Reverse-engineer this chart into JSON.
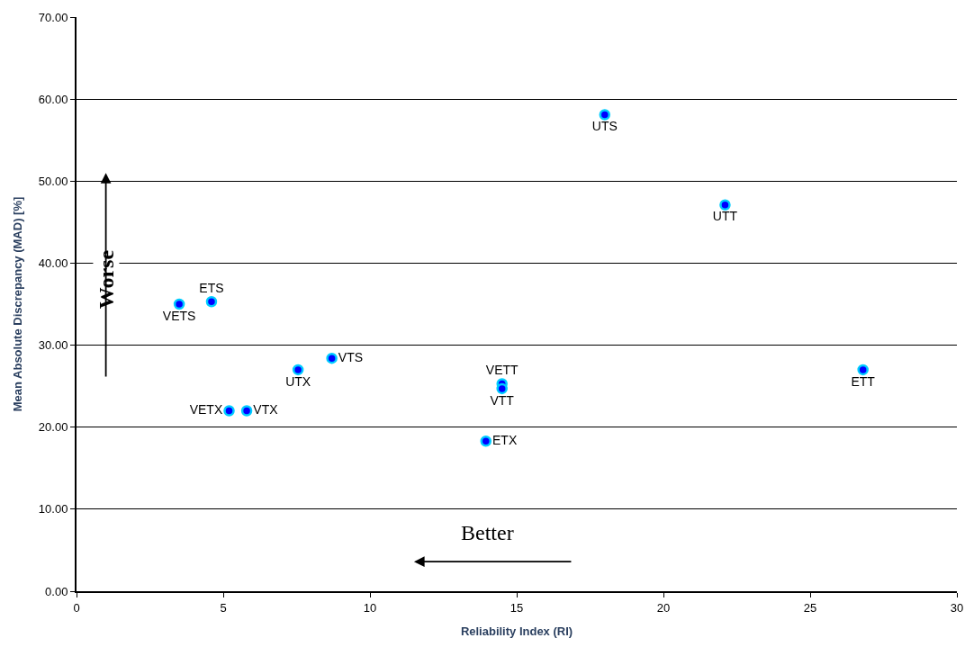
{
  "chart_data": {
    "type": "scatter",
    "xlabel": "Reliability Index (RI)",
    "ylabel": "Mean Absolute Discrepancy (MAD) [%]",
    "xlim": [
      0,
      30
    ],
    "xticks": [
      0,
      5,
      10,
      15,
      20,
      25,
      30
    ],
    "ylim": [
      0,
      70
    ],
    "yticks": [
      {
        "value": 0,
        "label": "0.00"
      },
      {
        "value": 10,
        "label": "10.00"
      },
      {
        "value": 20,
        "label": "20.00"
      },
      {
        "value": 30,
        "label": "30.00"
      },
      {
        "value": 40,
        "label": "40.00"
      },
      {
        "value": 50,
        "label": "50.00"
      },
      {
        "value": 60,
        "label": "60.00"
      },
      {
        "value": 70,
        "label": "70.00"
      }
    ],
    "grid": "y",
    "marker": "circle",
    "legend": false,
    "series": [
      {
        "name": "UTS",
        "color": "#0000ff",
        "x": [
          18.0
        ],
        "values": [
          58.1
        ]
      },
      {
        "name": "UTT",
        "color": "#0000ff",
        "x": [
          22.1
        ],
        "values": [
          47.1
        ]
      },
      {
        "name": "ETS",
        "color": "#0000ff",
        "x": [
          4.6
        ],
        "values": [
          35.3
        ]
      },
      {
        "name": "VETS",
        "color": "#0000ff",
        "x": [
          3.5
        ],
        "values": [
          35.0
        ]
      },
      {
        "name": "VTS",
        "color": "#0000ff",
        "x": [
          8.7
        ],
        "values": [
          28.4
        ]
      },
      {
        "name": "UTX",
        "color": "#0000ff",
        "x": [
          7.55
        ],
        "values": [
          27.0
        ]
      },
      {
        "name": "VETT",
        "color": "#0000ff",
        "x": [
          14.5
        ],
        "values": [
          25.3
        ]
      },
      {
        "name": "VTT",
        "color": "#0000ff",
        "x": [
          14.5
        ],
        "values": [
          24.7
        ]
      },
      {
        "name": "ETT",
        "color": "#0000ff",
        "x": [
          26.8
        ],
        "values": [
          27.0
        ]
      },
      {
        "name": "VETX",
        "color": "#0000ff",
        "x": [
          5.2
        ],
        "values": [
          22.0
        ]
      },
      {
        "name": "VTX",
        "color": "#0000ff",
        "x": [
          5.8
        ],
        "values": [
          22.0
        ]
      },
      {
        "name": "ETX",
        "color": "#0000ff",
        "x": [
          13.95
        ],
        "values": [
          18.3
        ]
      }
    ],
    "annotations": [
      "Worse",
      "Better"
    ]
  }
}
